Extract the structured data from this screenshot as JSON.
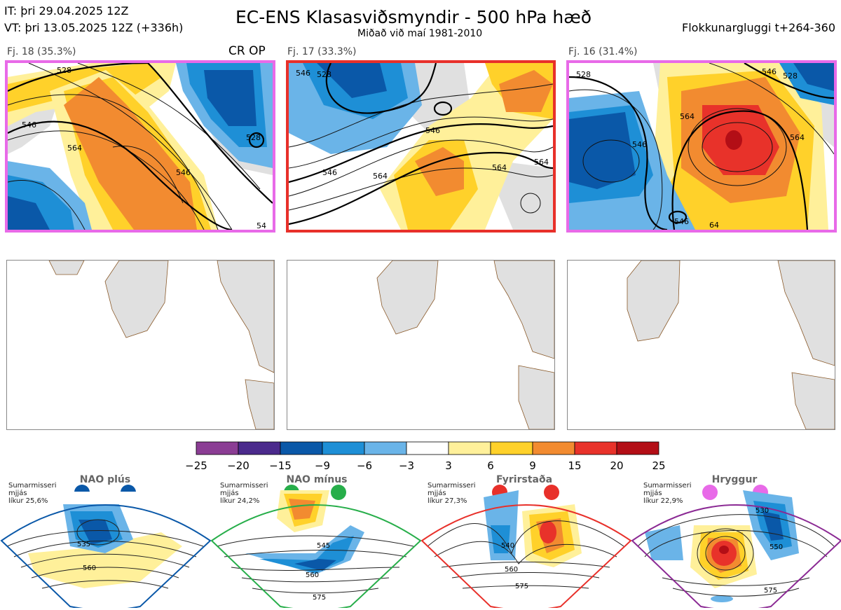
{
  "header": {
    "it": "IT: þri 29.04.2025 12Z",
    "vt": "VT: þri 13.05.2025 12Z  (+336h)",
    "title": "EC-ENS Klasasviðsmyndir - 500 hPa hæð",
    "subtitle": "Miðað við maí 1981-2010",
    "window": "Flokkunargluggi t+264-360"
  },
  "clusters": [
    {
      "label": "Fj. 18 (35.3%)",
      "tag": "CR OP",
      "border": "#e86ae8",
      "contours": [
        "528",
        "546",
        "564",
        "546",
        "528",
        "54"
      ]
    },
    {
      "label": "Fj. 17 (33.3%)",
      "tag": "",
      "border": "#e8302a",
      "contours": [
        "546",
        "528",
        "546",
        "564",
        "564",
        "564",
        "546"
      ]
    },
    {
      "label": "Fj. 16 (31.4%)",
      "tag": "",
      "border": "#e86ae8",
      "contours": [
        "546",
        "528",
        "564",
        "564",
        "546",
        "546",
        "64",
        "528"
      ]
    }
  ],
  "colorbar": {
    "colors": [
      "#8b3d94",
      "#4b2a8c",
      "#0a58a8",
      "#1e8fd6",
      "#6ab4e8",
      "#ffffff",
      "#fff09a",
      "#ffd12a",
      "#f28b30",
      "#e8322a",
      "#b30e16"
    ],
    "ticks": [
      "−25",
      "−20",
      "−15",
      "−9",
      "−6",
      "−3",
      "3",
      "6",
      "9",
      "15",
      "20",
      "25"
    ]
  },
  "regimes": [
    {
      "name": "NAO plús",
      "season": "Sumarmisseri",
      "mean": "mjjás",
      "prob": "líkur 25,6%",
      "color": "#0a58a8",
      "contours": [
        "535",
        "560"
      ]
    },
    {
      "name": "NAO mínus",
      "season": "Sumarmisseri",
      "mean": "mjjás",
      "prob": "líkur 24,2%",
      "color": "#27ae4a",
      "contours": [
        "545",
        "560",
        "575"
      ]
    },
    {
      "name": "Fyrirstaða",
      "season": "Sumarmisseri",
      "mean": "mjjás",
      "prob": "líkur 27,3%",
      "color": "#e8302a",
      "contours": [
        "540",
        "560",
        "575"
      ]
    },
    {
      "name": "Hryggur",
      "season": "Sumarmisseri",
      "mean": "mjjás",
      "prob": "líkur 22,9%",
      "color": "#e86ae8",
      "contours": [
        "530",
        "550",
        "575"
      ]
    }
  ]
}
